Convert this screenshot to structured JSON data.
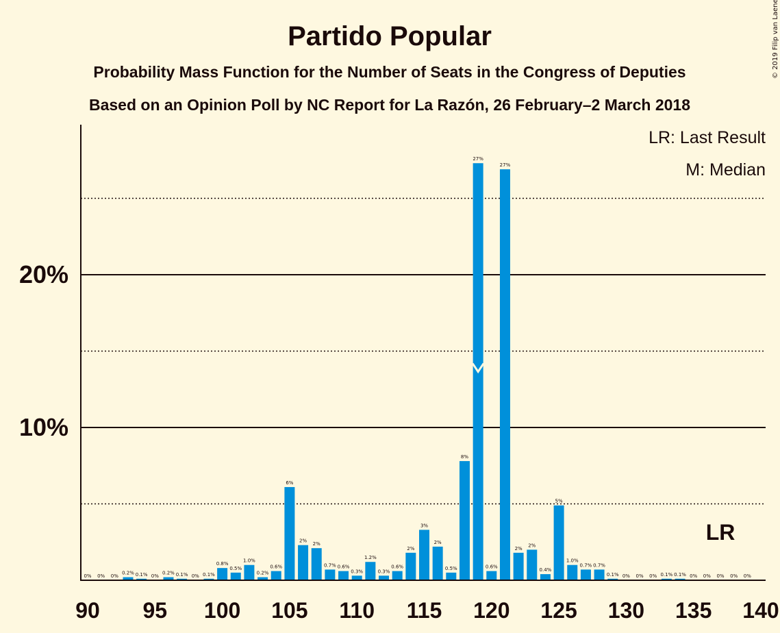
{
  "copyright": "© 2019 Filip van Laenen",
  "chart_data": {
    "type": "bar",
    "title": "Partido Popular",
    "subtitle1": "Probability Mass Function for the Number of Seats in the Congress of Deputies",
    "subtitle2": "Based on an Opinion Poll by NC Report for La Razón, 26 February–2 March 2018",
    "legend": [
      "LR: Last Result",
      "M: Median"
    ],
    "x": [
      90,
      91,
      92,
      93,
      94,
      95,
      96,
      97,
      98,
      99,
      100,
      101,
      102,
      103,
      104,
      105,
      106,
      107,
      108,
      109,
      110,
      111,
      112,
      113,
      114,
      115,
      116,
      117,
      118,
      119,
      120,
      121,
      122,
      123,
      124,
      125,
      126,
      127,
      128,
      129,
      130,
      131,
      132,
      133,
      134,
      135,
      136,
      137,
      138,
      139
    ],
    "values": [
      0,
      0,
      0,
      0.2,
      0.1,
      0,
      0.2,
      0.1,
      0,
      0.1,
      0.8,
      0.5,
      1.0,
      0.2,
      0.6,
      6.1,
      2.3,
      2.1,
      0.7,
      0.6,
      0.3,
      1.2,
      0.3,
      0.6,
      1.8,
      3.3,
      2.2,
      0.5,
      7.8,
      27.3,
      0.6,
      26.9,
      1.8,
      2.0,
      0.4,
      4.9,
      1.0,
      0.7,
      0.7,
      0.1,
      0,
      0,
      0,
      0.1,
      0.1,
      0,
      0,
      0,
      0,
      0
    ],
    "labels": [
      "0%",
      "0%",
      "0%",
      "0.2%",
      "0.1%",
      "0%",
      "0.2%",
      "0.1%",
      "0%",
      "0.1%",
      "0.8%",
      "0.5%",
      "1.0%",
      "0.2%",
      "0.6%",
      "6%",
      "2%",
      "2%",
      "0.7%",
      "0.6%",
      "0.3%",
      "1.2%",
      "0.3%",
      "0.6%",
      "2%",
      "3%",
      "2%",
      "0.5%",
      "8%",
      "27%",
      "0.6%",
      "27%",
      "2%",
      "2%",
      "0.4%",
      "5%",
      "1.0%",
      "0.7%",
      "0.7%",
      "0.1%",
      "0%",
      "0%",
      "0%",
      "0.1%",
      "0.1%",
      "0%",
      "0%",
      "0%",
      "0%",
      "0%"
    ],
    "x_ticks": [
      "90",
      "95",
      "100",
      "105",
      "110",
      "115",
      "120",
      "125",
      "130",
      "135",
      "140"
    ],
    "y_ticks": [
      "10%",
      "20%"
    ],
    "ylim": [
      0,
      30
    ],
    "median": 119,
    "last_result": 137,
    "last_result_label": "LR",
    "bar_color": "#0090DA",
    "grid": "solid at 10% and 20%, dotted at 5%, 15%, 25%"
  }
}
